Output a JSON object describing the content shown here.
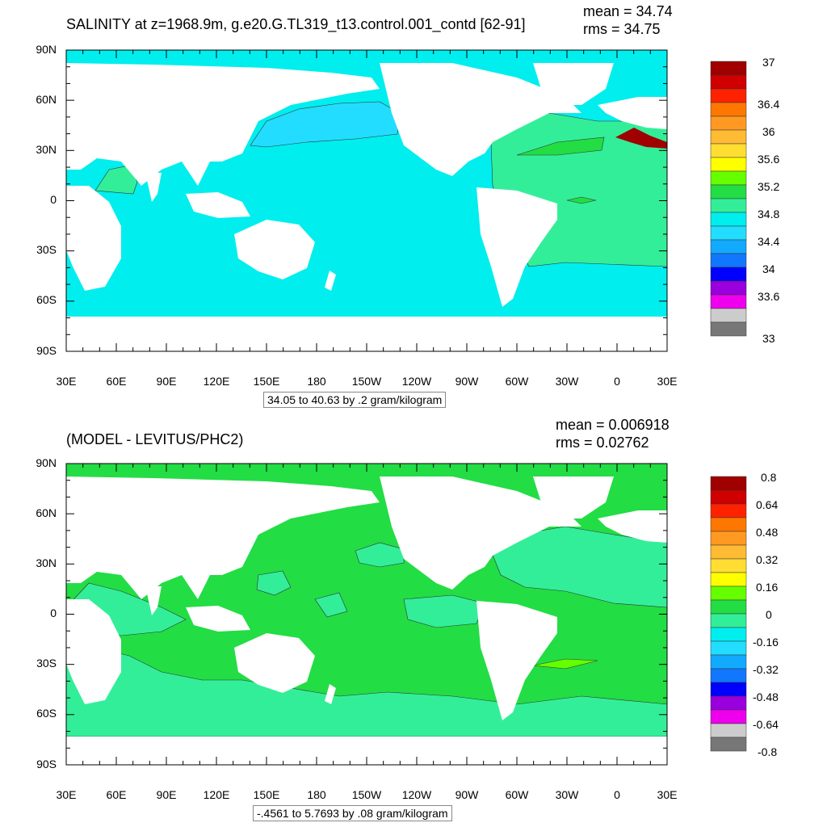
{
  "panels": [
    {
      "id": "top",
      "title": "SALINITY at z=1968.9m, g.e20.G.TL319_t13.control.001_contd [62-91]",
      "stats": {
        "mean": "mean = 34.74",
        "rms": "rms = 34.75"
      },
      "lat_labels": [
        "90N",
        "60N",
        "30N",
        "0",
        "30S",
        "60S",
        "90S"
      ],
      "lon_labels": [
        "30E",
        "60E",
        "90E",
        "120E",
        "150E",
        "180",
        "150W",
        "120W",
        "90W",
        "60W",
        "30W",
        "0",
        "30E"
      ],
      "range_note": "34.05 to 40.63 by .2 gram/kilogram",
      "colorbar_labels": [
        "37",
        "36.4",
        "36",
        "35.6",
        "35.2",
        "34.8",
        "34.4",
        "34",
        "33.6",
        "33"
      ],
      "colorbar_colors": [
        "#a00000",
        "#d00000",
        "#ff2200",
        "#ff7700",
        "#ff9922",
        "#ffbb33",
        "#ffdd33",
        "#ffff00",
        "#66ff00",
        "#22dd44",
        "#33ee99",
        "#00eeee",
        "#22ddff",
        "#11aaff",
        "#1177ff",
        "#0000ff",
        "#9900dd",
        "#ee00ee",
        "#cccccc",
        "#777777"
      ],
      "ocean_color": "#00eeee"
    },
    {
      "id": "bottom",
      "title": "(MODEL - LEVITUS/PHC2)",
      "stats": {
        "mean": "mean = 0.006918",
        "rms": "rms = 0.02762"
      },
      "lat_labels": [
        "90N",
        "60N",
        "30N",
        "0",
        "30S",
        "60S",
        "90S"
      ],
      "lon_labels": [
        "30E",
        "60E",
        "90E",
        "120E",
        "150E",
        "180",
        "150W",
        "120W",
        "90W",
        "60W",
        "30W",
        "0",
        "30E"
      ],
      "range_note": "-.4561 to 5.7693 by .08 gram/kilogram",
      "colorbar_labels": [
        "0.8",
        "0.64",
        "0.48",
        "0.32",
        "0.16",
        "0",
        "-0.16",
        "-0.32",
        "-0.48",
        "-0.64",
        "-0.8"
      ],
      "colorbar_colors": [
        "#a00000",
        "#d00000",
        "#ff2200",
        "#ff7700",
        "#ff9922",
        "#ffbb33",
        "#ffdd33",
        "#ffff00",
        "#66ff00",
        "#22dd44",
        "#33ee99",
        "#00eeee",
        "#22ddff",
        "#11aaff",
        "#1177ff",
        "#0000ff",
        "#9900dd",
        "#ee00ee",
        "#cccccc",
        "#777777"
      ],
      "ocean_color": "#22dd44",
      "ocean_alt_color": "#00eeee"
    }
  ]
}
